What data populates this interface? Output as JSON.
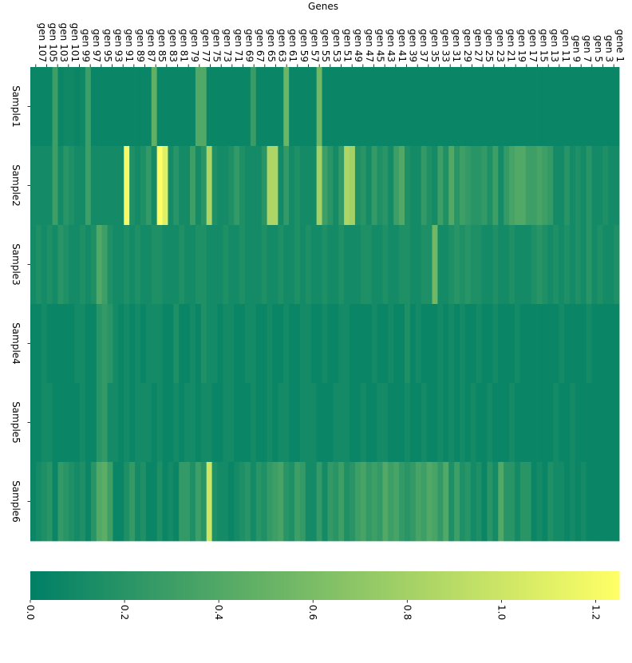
{
  "chart_data": {
    "type": "heatmap",
    "title": "Genes",
    "xlabel": "Genes",
    "ylabel": "",
    "columns_order": "gen 107 (left) ... gene 1 (right)",
    "x_tick_labels": [
      "gen 107",
      "gen 105",
      "gen 103",
      "gen 101",
      "gen 99",
      "gen 97",
      "gen 95",
      "gen 93",
      "gen 91",
      "gen 89",
      "gen 87",
      "gen 85",
      "gen 83",
      "gen 81",
      "gen 79",
      "gen 77",
      "gen 75",
      "gen 73",
      "gen 71",
      "gen 69",
      "gen 67",
      "gen 65",
      "gen 63",
      "gen 61",
      "gen 59",
      "gen 57",
      "gen 55",
      "gen 53",
      "gen 51",
      "gen 49",
      "gen 47",
      "gen 45",
      "gen 43",
      "gen 41",
      "gen 39",
      "gen 37",
      "gen 35",
      "gen 33",
      "gen 31",
      "gen 29",
      "gen 27",
      "gen 25",
      "gen 23",
      "gen 21",
      "gen 19",
      "gen 17",
      "gen 15",
      "gen 13",
      "gen 11",
      "gen 9",
      "gen 7",
      "gen 5",
      "gen 3",
      "gene 1"
    ],
    "rows": [
      "Sample1",
      "Sample2",
      "Sample3",
      "Sample4",
      "Sample5",
      "Sample6"
    ],
    "colorbar": {
      "min": 0.0,
      "max": 1.25,
      "ticks": [
        "0.0",
        "0.2",
        "0.4",
        "0.6",
        "0.8",
        "1.0",
        "1.2"
      ],
      "orientation": "horizontal",
      "colormap": "summer"
    },
    "values": [
      [
        0.05,
        0.05,
        0.05,
        0.05,
        0.3,
        0.05,
        0.08,
        0.08,
        0.05,
        0.08,
        0.3,
        0.05,
        0.05,
        0.05,
        0.05,
        0.05,
        0.05,
        0.05,
        0.05,
        0.05,
        0.05,
        0.05,
        0.48,
        0.05,
        0.05,
        0.05,
        0.05,
        0.05,
        0.05,
        0.05,
        0.4,
        0.4,
        0.05,
        0.05,
        0.05,
        0.05,
        0.05,
        0.05,
        0.05,
        0.05,
        0.28,
        0.05,
        0.05,
        0.05,
        0.05,
        0.05,
        0.52,
        0.05,
        0.05,
        0.05,
        0.05,
        0.05,
        0.55,
        0.05,
        0.05,
        0.05,
        0.05,
        0.05,
        0.05,
        0.05,
        0.05,
        0.05,
        0.05,
        0.05,
        0.05,
        0.05,
        0.05,
        0.05,
        0.05,
        0.05,
        0.05,
        0.05,
        0.05,
        0.05,
        0.05,
        0.05,
        0.05,
        0.05,
        0.05,
        0.05,
        0.05,
        0.05,
        0.05,
        0.05,
        0.05,
        0.05,
        0.05,
        0.05,
        0.05,
        0.05,
        0.05,
        0.05,
        0.05,
        0.05,
        0.05,
        0.05,
        0.05,
        0.05,
        0.05,
        0.05,
        0.05,
        0.05,
        0.05,
        0.05,
        0.05,
        0.05,
        0.05
      ],
      [
        0.1,
        0.1,
        0.1,
        0.1,
        0.3,
        0.1,
        0.2,
        0.15,
        0.1,
        0.1,
        0.3,
        0.1,
        0.1,
        0.1,
        0.1,
        0.1,
        0.1,
        1.2,
        0.15,
        0.1,
        0.15,
        0.25,
        0.1,
        1.25,
        1.1,
        0.1,
        0.2,
        0.1,
        0.1,
        0.3,
        0.1,
        0.2,
        0.85,
        0.15,
        0.1,
        0.1,
        0.15,
        0.25,
        0.15,
        0.1,
        0.1,
        0.1,
        0.2,
        0.85,
        0.85,
        0.1,
        0.25,
        0.1,
        0.15,
        0.1,
        0.1,
        0.1,
        0.8,
        0.3,
        0.2,
        0.1,
        0.25,
        0.85,
        0.8,
        0.15,
        0.2,
        0.1,
        0.25,
        0.15,
        0.2,
        0.1,
        0.3,
        0.4,
        0.15,
        0.1,
        0.1,
        0.25,
        0.15,
        0.1,
        0.3,
        0.15,
        0.4,
        0.2,
        0.3,
        0.25,
        0.2,
        0.2,
        0.25,
        0.15,
        0.3,
        0.1,
        0.25,
        0.35,
        0.4,
        0.4,
        0.3,
        0.3,
        0.35,
        0.3,
        0.25,
        0.1,
        0.1,
        0.2,
        0.1,
        0.15,
        0.1,
        0.2,
        0.1,
        0.1,
        0.15,
        0.1,
        0.1
      ],
      [
        0.1,
        0.15,
        0.1,
        0.15,
        0.1,
        0.2,
        0.15,
        0.1,
        0.1,
        0.15,
        0.1,
        0.15,
        0.4,
        0.3,
        0.15,
        0.1,
        0.1,
        0.15,
        0.1,
        0.15,
        0.1,
        0.1,
        0.15,
        0.15,
        0.1,
        0.1,
        0.1,
        0.15,
        0.1,
        0.1,
        0.15,
        0.15,
        0.1,
        0.1,
        0.1,
        0.15,
        0.1,
        0.1,
        0.15,
        0.1,
        0.1,
        0.1,
        0.15,
        0.1,
        0.1,
        0.15,
        0.1,
        0.1,
        0.15,
        0.1,
        0.15,
        0.1,
        0.1,
        0.15,
        0.1,
        0.1,
        0.15,
        0.1,
        0.1,
        0.1,
        0.15,
        0.15,
        0.1,
        0.1,
        0.15,
        0.1,
        0.1,
        0.15,
        0.15,
        0.1,
        0.1,
        0.15,
        0.15,
        0.55,
        0.1,
        0.1,
        0.15,
        0.2,
        0.15,
        0.2,
        0.15,
        0.15,
        0.1,
        0.1,
        0.15,
        0.1,
        0.1,
        0.15,
        0.1,
        0.1,
        0.1,
        0.15,
        0.2,
        0.15,
        0.1,
        0.15,
        0.1,
        0.15,
        0.1,
        0.15,
        0.1,
        0.2,
        0.1,
        0.15,
        0.1,
        0.1,
        0.15
      ],
      [
        0.05,
        0.05,
        0.1,
        0.05,
        0.05,
        0.05,
        0.05,
        0.05,
        0.1,
        0.1,
        0.05,
        0.05,
        0.2,
        0.25,
        0.2,
        0.1,
        0.05,
        0.1,
        0.05,
        0.1,
        0.05,
        0.1,
        0.1,
        0.1,
        0.05,
        0.05,
        0.15,
        0.05,
        0.05,
        0.1,
        0.05,
        0.15,
        0.1,
        0.1,
        0.05,
        0.1,
        0.1,
        0.05,
        0.05,
        0.1,
        0.1,
        0.05,
        0.05,
        0.1,
        0.05,
        0.05,
        0.1,
        0.05,
        0.05,
        0.1,
        0.1,
        0.05,
        0.05,
        0.1,
        0.05,
        0.05,
        0.1,
        0.1,
        0.05,
        0.05,
        0.05,
        0.05,
        0.1,
        0.05,
        0.05,
        0.1,
        0.05,
        0.05,
        0.15,
        0.05,
        0.1,
        0.05,
        0.05,
        0.05,
        0.1,
        0.05,
        0.1,
        0.05,
        0.1,
        0.05,
        0.05,
        0.1,
        0.05,
        0.05,
        0.1,
        0.05,
        0.05,
        0.05,
        0.1,
        0.05,
        0.05,
        0.05,
        0.05,
        0.05,
        0.05,
        0.05,
        0.1,
        0.05,
        0.05,
        0.05,
        0.05,
        0.1,
        0.05,
        0.05,
        0.05,
        0.05,
        0.05
      ],
      [
        0.05,
        0.05,
        0.1,
        0.1,
        0.05,
        0.05,
        0.05,
        0.05,
        0.05,
        0.1,
        0.05,
        0.05,
        0.2,
        0.25,
        0.1,
        0.1,
        0.05,
        0.1,
        0.05,
        0.1,
        0.1,
        0.1,
        0.05,
        0.1,
        0.05,
        0.05,
        0.1,
        0.05,
        0.1,
        0.1,
        0.05,
        0.1,
        0.1,
        0.05,
        0.05,
        0.1,
        0.1,
        0.05,
        0.05,
        0.05,
        0.1,
        0.05,
        0.05,
        0.1,
        0.05,
        0.1,
        0.1,
        0.05,
        0.05,
        0.1,
        0.1,
        0.1,
        0.05,
        0.05,
        0.05,
        0.1,
        0.1,
        0.1,
        0.05,
        0.05,
        0.1,
        0.05,
        0.05,
        0.1,
        0.1,
        0.05,
        0.05,
        0.05,
        0.1,
        0.05,
        0.05,
        0.1,
        0.05,
        0.05,
        0.1,
        0.05,
        0.1,
        0.05,
        0.1,
        0.05,
        0.1,
        0.05,
        0.05,
        0.1,
        0.05,
        0.05,
        0.05,
        0.1,
        0.05,
        0.05,
        0.05,
        0.05,
        0.05,
        0.05,
        0.05,
        0.1,
        0.05,
        0.05,
        0.1,
        0.05,
        0.05,
        0.05,
        0.05,
        0.05,
        0.05,
        0.05,
        0.05
      ],
      [
        0.05,
        0.1,
        0.15,
        0.2,
        0.05,
        0.25,
        0.2,
        0.15,
        0.1,
        0.15,
        0.05,
        0.2,
        0.4,
        0.45,
        0.3,
        0.05,
        0.05,
        0.15,
        0.25,
        0.1,
        0.15,
        0.05,
        0.05,
        0.15,
        0.05,
        0.1,
        0.05,
        0.25,
        0.25,
        0.15,
        0.3,
        0.2,
        1.0,
        0.15,
        0.1,
        0.1,
        0.05,
        0.1,
        0.15,
        0.2,
        0.1,
        0.2,
        0.15,
        0.25,
        0.3,
        0.35,
        0.2,
        0.15,
        0.3,
        0.25,
        0.1,
        0.1,
        0.25,
        0.1,
        0.25,
        0.2,
        0.3,
        0.15,
        0.2,
        0.3,
        0.35,
        0.25,
        0.3,
        0.25,
        0.4,
        0.3,
        0.35,
        0.25,
        0.2,
        0.25,
        0.35,
        0.3,
        0.4,
        0.35,
        0.25,
        0.4,
        0.15,
        0.3,
        0.15,
        0.2,
        0.1,
        0.15,
        0.05,
        0.2,
        0.1,
        0.4,
        0.2,
        0.2,
        0.1,
        0.2,
        0.2,
        0.05,
        0.1,
        0.05,
        0.15,
        0.1,
        0.1,
        0.05,
        0.1,
        0.05,
        0.1,
        0.05,
        0.05,
        0.05,
        0.05,
        0.05,
        0.05
      ]
    ]
  }
}
